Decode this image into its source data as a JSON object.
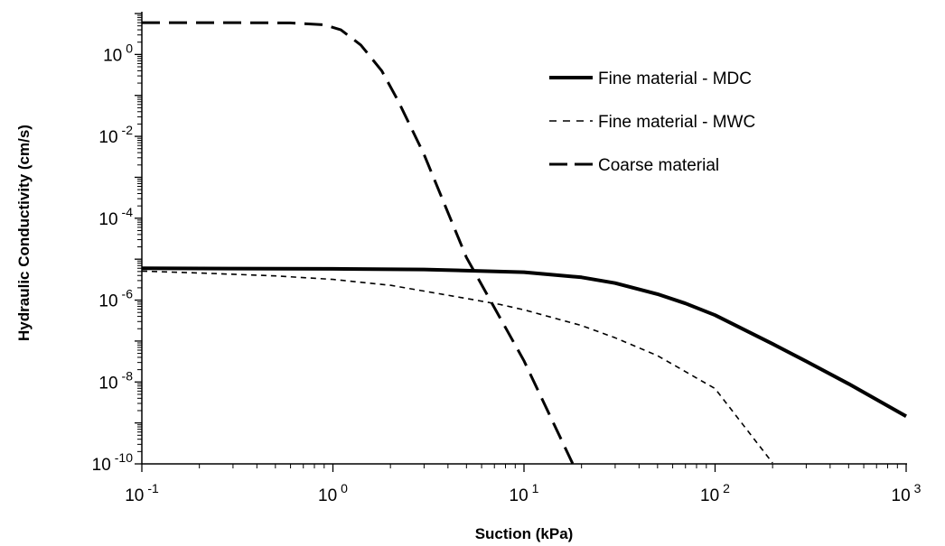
{
  "chart_data": {
    "type": "line",
    "title": "",
    "xlabel": "Suction (kPa)",
    "ylabel": "Hydraulic Conductivity (cm/s)",
    "xscale": "log",
    "yscale": "log",
    "xlim": [
      0.1,
      1000
    ],
    "ylim": [
      1e-10,
      10
    ],
    "grid": false,
    "legend_position": "top-right",
    "x_ticks": [
      {
        "base": "10",
        "exp": "-1"
      },
      {
        "base": "10",
        "exp": "0"
      },
      {
        "base": "10",
        "exp": "1"
      },
      {
        "base": "10",
        "exp": "2"
      },
      {
        "base": "10",
        "exp": "3"
      }
    ],
    "y_ticks": [
      {
        "base": "10",
        "exp": "-10"
      },
      {
        "base": "10",
        "exp": "-8"
      },
      {
        "base": "10",
        "exp": "-6"
      },
      {
        "base": "10",
        "exp": "-4"
      },
      {
        "base": "10",
        "exp": "-2"
      },
      {
        "base": "10",
        "exp": "0"
      }
    ],
    "series": [
      {
        "name": "Fine material - MDC",
        "style": "solid",
        "color": "#000000",
        "x": [
          0.1,
          0.3,
          1,
          3,
          10,
          20,
          30,
          50,
          70,
          100,
          200,
          300,
          500,
          1000
        ],
        "y": [
          6e-06,
          5.9e-06,
          5.8e-06,
          5.6e-06,
          4.8e-06,
          3.6e-06,
          2.6e-06,
          1.4e-06,
          8.3e-07,
          4.3e-07,
          8.5e-08,
          3.2e-08,
          9e-09,
          1.45e-09
        ]
      },
      {
        "name": "Fine material - MWC",
        "style": "short-dash",
        "color": "#000000",
        "x": [
          0.1,
          0.2,
          0.5,
          1,
          2,
          5,
          7.5,
          10,
          20,
          30,
          50,
          100,
          200
        ],
        "y": [
          5.1e-06,
          4.6e-06,
          3.9e-06,
          3.2e-06,
          2.3e-06,
          1.1e-06,
          7.8e-07,
          5.8e-07,
          2.4e-07,
          1.2e-07,
          4.4e-08,
          6.9e-09,
          1.05e-10
        ]
      },
      {
        "name": "Coarse material",
        "style": "long-dash",
        "color": "#000000",
        "x": [
          0.1,
          0.3,
          0.6,
          0.9,
          1.1,
          1.4,
          1.8,
          2.2,
          3,
          5,
          10,
          18
        ],
        "y": [
          6.0,
          6.0,
          5.9,
          5.3,
          4.0,
          1.7,
          0.4,
          0.072,
          0.0036,
          1.1e-05,
          3.3e-08,
          1e-10
        ]
      }
    ]
  }
}
